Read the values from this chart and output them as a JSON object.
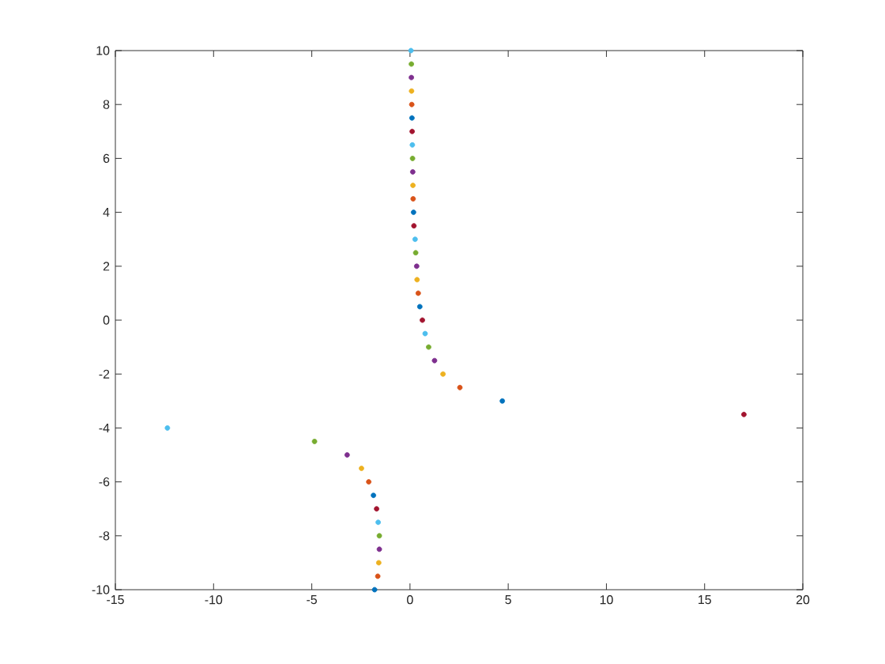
{
  "chart_data": {
    "type": "scatter",
    "marker": "circle",
    "x": [
      0.05,
      0.07,
      0.07,
      0.08,
      0.09,
      0.1,
      0.11,
      0.12,
      0.13,
      0.14,
      0.15,
      0.16,
      0.18,
      0.2,
      0.26,
      0.29,
      0.34,
      0.36,
      0.42,
      0.5,
      0.63,
      0.77,
      0.95,
      1.25,
      1.68,
      2.54,
      4.7,
      -4.86,
      -3.2,
      -2.47,
      -2.1,
      -1.86,
      -1.7,
      -1.62,
      -1.56,
      -1.56,
      -1.59,
      -1.64,
      -1.8,
      -12.35,
      17
    ],
    "values": [
      10,
      9.5,
      9,
      8.5,
      8,
      7.5,
      7,
      6.5,
      6,
      5.5,
      5,
      4.5,
      4,
      3.5,
      3,
      2.5,
      2,
      1.5,
      1,
      0.5,
      0,
      -0.5,
      -1,
      -1.5,
      -2,
      -2.5,
      -3,
      -4.5,
      -5,
      -5.5,
      -6,
      -6.5,
      -7,
      -7.5,
      -8,
      -8.5,
      -9,
      -9.5,
      -10,
      -4,
      -3.5
    ],
    "colors": [
      "#4dbeee",
      "#77ac30",
      "#7e2f8e",
      "#edb120",
      "#d95319",
      "#0072bd",
      "#a2142f",
      "#4dbeee",
      "#77ac30",
      "#7e2f8e",
      "#edb120",
      "#d95319",
      "#0072bd",
      "#a2142f",
      "#4dbeee",
      "#77ac30",
      "#7e2f8e",
      "#edb120",
      "#d95319",
      "#0072bd",
      "#a2142f",
      "#4dbeee",
      "#77ac30",
      "#7e2f8e",
      "#edb120",
      "#d95319",
      "#0072bd",
      "#77ac30",
      "#7e2f8e",
      "#edb120",
      "#d95319",
      "#0072bd",
      "#a2142f",
      "#4dbeee",
      "#77ac30",
      "#7e2f8e",
      "#edb120",
      "#d95319",
      "#0072bd",
      "#4dbeee",
      "#a2142f"
    ],
    "xlim": [
      -15,
      20
    ],
    "ylim": [
      -10,
      10
    ],
    "xticks": [
      -15,
      -10,
      -5,
      0,
      5,
      10,
      15,
      20
    ],
    "yticks": [
      -10,
      -8,
      -6,
      -4,
      -2,
      0,
      2,
      4,
      6,
      8,
      10
    ]
  }
}
